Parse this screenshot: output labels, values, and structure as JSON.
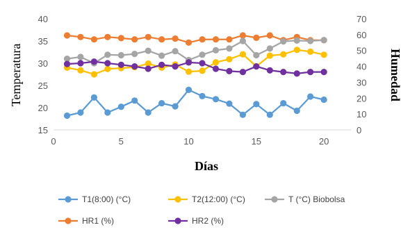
{
  "chart_data": {
    "type": "line",
    "xlabel": "Días",
    "ylabel_left": "Temperatura",
    "ylabel_right": "Humedad",
    "xlim": [
      0,
      22
    ],
    "ylim_left": [
      15,
      40
    ],
    "ylim_right": [
      0,
      70
    ],
    "x_ticks": [
      0,
      5,
      10,
      15,
      20
    ],
    "y_ticks_left": [
      15,
      20,
      25,
      30,
      35,
      40
    ],
    "y_ticks_right": [
      0,
      10,
      20,
      30,
      40,
      50,
      60,
      70
    ],
    "grid": "none",
    "legend_position": "bottom",
    "x": [
      1,
      2,
      3,
      4,
      5,
      6,
      7,
      8,
      9,
      10,
      11,
      12,
      13,
      14,
      15,
      16,
      17,
      18,
      19,
      20
    ],
    "series": [
      {
        "name": "T1(8:00) (°C)",
        "axis": "left",
        "color": "#5b9bd5",
        "values": [
          18.2,
          18.9,
          22.3,
          18.9,
          20.2,
          21.6,
          18.9,
          21.0,
          20.3,
          24.0,
          22.6,
          21.9,
          20.9,
          18.4,
          20.8,
          18.4,
          21.0,
          19.3,
          22.5,
          21.8
        ]
      },
      {
        "name": "T2(12:00) (°C)",
        "axis": "left",
        "color": "#ffc000",
        "values": [
          29.0,
          28.4,
          27.5,
          28.7,
          28.9,
          29.1,
          29.9,
          29.0,
          29.7,
          28.1,
          28.3,
          30.2,
          30.9,
          32.0,
          29.3,
          31.7,
          32.0,
          33.0,
          32.6,
          31.9
        ]
      },
      {
        "name": "T (°C) Biobolsa",
        "axis": "left",
        "color": "#a5a5a5",
        "values": [
          31.0,
          31.4,
          30.0,
          31.9,
          31.8,
          32.1,
          32.8,
          31.7,
          32.7,
          30.7,
          31.9,
          32.9,
          33.3,
          35.0,
          31.8,
          33.3,
          34.9,
          35.1,
          35.0,
          35.2
        ]
      },
      {
        "name": "HR1 (%)",
        "axis": "right",
        "color": "#ed7d31",
        "values": [
          59.5,
          58.5,
          57.0,
          58.5,
          57.8,
          57.0,
          58.5,
          57.0,
          57.5,
          55.0,
          57.0,
          57.0,
          57.0,
          59.5,
          58.0,
          59.5,
          56.5,
          58.5,
          56.5,
          56.5
        ]
      },
      {
        "name": "HR2 (%)",
        "axis": "right",
        "color": "#7030a0",
        "values": [
          41.5,
          42.0,
          43.0,
          42.0,
          41.0,
          40.0,
          38.5,
          41.0,
          40.0,
          42.5,
          42.0,
          38.5,
          37.0,
          36.5,
          40.0,
          37.5,
          36.5,
          35.5,
          36.5,
          36.5
        ]
      }
    ]
  }
}
